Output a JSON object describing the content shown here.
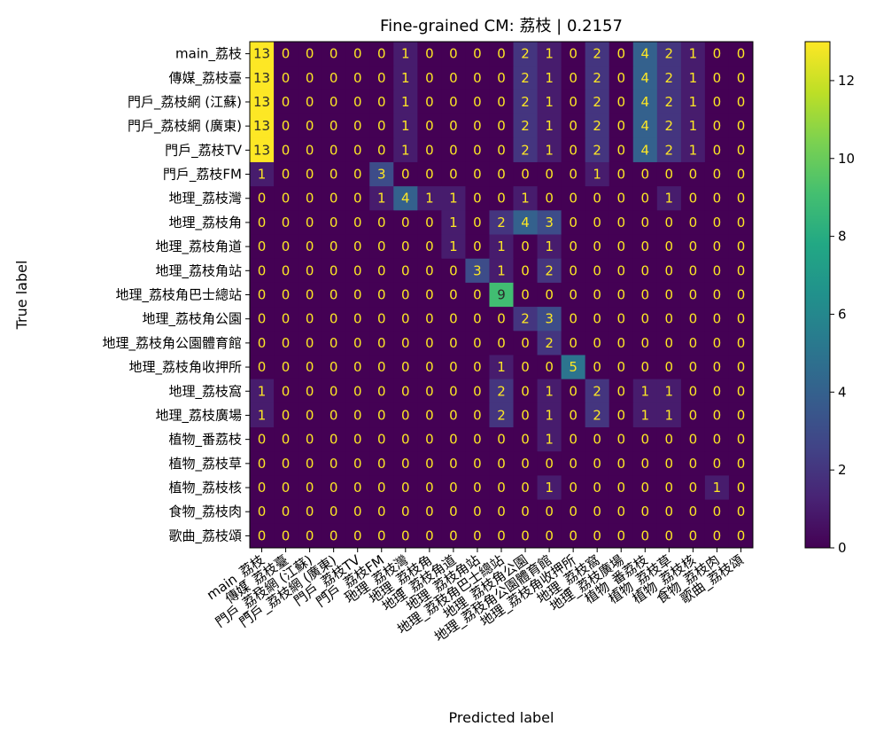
{
  "chart_data": {
    "type": "heatmap",
    "title": "Fine-grained CM: 荔枝 | 0.2157",
    "xlabel": "Predicted label",
    "ylabel": "True label",
    "labels": [
      "main_荔枝",
      "傳媒_荔枝臺",
      "門戶_荔枝網 (江蘇)",
      "門戶_荔枝網 (廣東)",
      "門戶_荔枝TV",
      "門戶_荔枝FM",
      "地理_荔枝灣",
      "地理_荔枝角",
      "地理_荔枝角道",
      "地理_荔枝角站",
      "地理_荔枝角巴士總站",
      "地理_荔枝角公園",
      "地理_荔枝角公園體育館",
      "地理_荔枝角收押所",
      "地理_荔枝窩",
      "地理_荔枝廣場",
      "植物_番荔枝",
      "植物_荔枝草",
      "植物_荔枝核",
      "食物_荔枝肉",
      "歌曲_荔枝頌"
    ],
    "matrix": [
      [
        13,
        0,
        0,
        0,
        0,
        0,
        1,
        0,
        0,
        0,
        0,
        2,
        1,
        0,
        2,
        0,
        4,
        2,
        1,
        0,
        0
      ],
      [
        13,
        0,
        0,
        0,
        0,
        0,
        1,
        0,
        0,
        0,
        0,
        2,
        1,
        0,
        2,
        0,
        4,
        2,
        1,
        0,
        0
      ],
      [
        13,
        0,
        0,
        0,
        0,
        0,
        1,
        0,
        0,
        0,
        0,
        2,
        1,
        0,
        2,
        0,
        4,
        2,
        1,
        0,
        0
      ],
      [
        13,
        0,
        0,
        0,
        0,
        0,
        1,
        0,
        0,
        0,
        0,
        2,
        1,
        0,
        2,
        0,
        4,
        2,
        1,
        0,
        0
      ],
      [
        13,
        0,
        0,
        0,
        0,
        0,
        1,
        0,
        0,
        0,
        0,
        2,
        1,
        0,
        2,
        0,
        4,
        2,
        1,
        0,
        0
      ],
      [
        1,
        0,
        0,
        0,
        0,
        3,
        0,
        0,
        0,
        0,
        0,
        0,
        0,
        0,
        1,
        0,
        0,
        0,
        0,
        0,
        0
      ],
      [
        0,
        0,
        0,
        0,
        0,
        1,
        4,
        1,
        1,
        0,
        0,
        1,
        0,
        0,
        0,
        0,
        0,
        1,
        0,
        0,
        0
      ],
      [
        0,
        0,
        0,
        0,
        0,
        0,
        0,
        0,
        1,
        0,
        2,
        4,
        3,
        0,
        0,
        0,
        0,
        0,
        0,
        0,
        0
      ],
      [
        0,
        0,
        0,
        0,
        0,
        0,
        0,
        0,
        1,
        0,
        1,
        0,
        1,
        0,
        0,
        0,
        0,
        0,
        0,
        0,
        0
      ],
      [
        0,
        0,
        0,
        0,
        0,
        0,
        0,
        0,
        0,
        3,
        1,
        0,
        2,
        0,
        0,
        0,
        0,
        0,
        0,
        0,
        0
      ],
      [
        0,
        0,
        0,
        0,
        0,
        0,
        0,
        0,
        0,
        0,
        9,
        0,
        0,
        0,
        0,
        0,
        0,
        0,
        0,
        0,
        0
      ],
      [
        0,
        0,
        0,
        0,
        0,
        0,
        0,
        0,
        0,
        0,
        0,
        2,
        3,
        0,
        0,
        0,
        0,
        0,
        0,
        0,
        0
      ],
      [
        0,
        0,
        0,
        0,
        0,
        0,
        0,
        0,
        0,
        0,
        0,
        0,
        2,
        0,
        0,
        0,
        0,
        0,
        0,
        0,
        0
      ],
      [
        0,
        0,
        0,
        0,
        0,
        0,
        0,
        0,
        0,
        0,
        1,
        0,
        0,
        5,
        0,
        0,
        0,
        0,
        0,
        0,
        0
      ],
      [
        1,
        0,
        0,
        0,
        0,
        0,
        0,
        0,
        0,
        0,
        2,
        0,
        1,
        0,
        2,
        0,
        1,
        1,
        0,
        0,
        0
      ],
      [
        1,
        0,
        0,
        0,
        0,
        0,
        0,
        0,
        0,
        0,
        2,
        0,
        1,
        0,
        2,
        0,
        1,
        1,
        0,
        0,
        0
      ],
      [
        0,
        0,
        0,
        0,
        0,
        0,
        0,
        0,
        0,
        0,
        0,
        0,
        1,
        0,
        0,
        0,
        0,
        0,
        0,
        0,
        0
      ],
      [
        0,
        0,
        0,
        0,
        0,
        0,
        0,
        0,
        0,
        0,
        0,
        0,
        0,
        0,
        0,
        0,
        0,
        0,
        0,
        0,
        0
      ],
      [
        0,
        0,
        0,
        0,
        0,
        0,
        0,
        0,
        0,
        0,
        0,
        0,
        1,
        0,
        0,
        0,
        0,
        0,
        0,
        1,
        0
      ],
      [
        0,
        0,
        0,
        0,
        0,
        0,
        0,
        0,
        0,
        0,
        0,
        0,
        0,
        0,
        0,
        0,
        0,
        0,
        0,
        0,
        0
      ],
      [
        0,
        0,
        0,
        0,
        0,
        0,
        0,
        0,
        0,
        0,
        0,
        0,
        0,
        0,
        0,
        0,
        0,
        0,
        0,
        0,
        0
      ]
    ],
    "colorbar": {
      "min": 0,
      "max": 13,
      "ticks": [
        0,
        2,
        4,
        6,
        8,
        10,
        12
      ],
      "colormap": "viridis"
    },
    "grid": false
  }
}
